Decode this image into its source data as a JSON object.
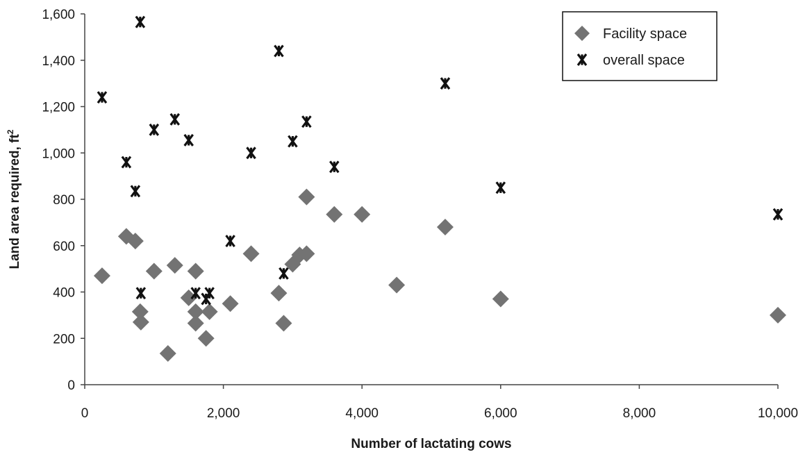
{
  "chart_data": {
    "type": "scatter",
    "xlabel": "Number of lactating cows",
    "ylabel": "Land area required, ft",
    "ylabel_sup": "2",
    "xlim": [
      0,
      10000
    ],
    "ylim": [
      0,
      1600
    ],
    "x_ticks": [
      0,
      2000,
      4000,
      6000,
      8000,
      10000
    ],
    "x_tick_labels": [
      "0",
      "2,000",
      "4,000",
      "6,000",
      "8,000",
      "10,000"
    ],
    "y_ticks": [
      0,
      200,
      400,
      600,
      800,
      1000,
      1200,
      1400,
      1600
    ],
    "y_tick_labels": [
      "0",
      "200",
      "400",
      "600",
      "800",
      "1,000",
      "1,200",
      "1,400",
      "1,600"
    ],
    "grid": false,
    "legend_position": "top-right",
    "series": [
      {
        "name": "Facility space",
        "marker": "diamond",
        "color": "#737373",
        "points": [
          [
            250,
            470
          ],
          [
            600,
            640
          ],
          [
            730,
            620
          ],
          [
            800,
            315
          ],
          [
            810,
            270
          ],
          [
            1000,
            490
          ],
          [
            1200,
            135
          ],
          [
            1300,
            515
          ],
          [
            1500,
            375
          ],
          [
            1600,
            490
          ],
          [
            1600,
            315
          ],
          [
            1600,
            265
          ],
          [
            1750,
            200
          ],
          [
            1800,
            315
          ],
          [
            2100,
            350
          ],
          [
            2400,
            565
          ],
          [
            2800,
            395
          ],
          [
            2870,
            265
          ],
          [
            3000,
            520
          ],
          [
            3100,
            560
          ],
          [
            3200,
            565
          ],
          [
            3200,
            810
          ],
          [
            3600,
            735
          ],
          [
            4000,
            735
          ],
          [
            4500,
            430
          ],
          [
            5200,
            680
          ],
          [
            6000,
            370
          ],
          [
            10000,
            300
          ]
        ]
      },
      {
        "name": "overall space",
        "marker": "asterisk",
        "color": "#111111",
        "points": [
          [
            250,
            1240
          ],
          [
            600,
            960
          ],
          [
            730,
            835
          ],
          [
            800,
            1565
          ],
          [
            810,
            395
          ],
          [
            1000,
            1100
          ],
          [
            1300,
            1145
          ],
          [
            1500,
            1055
          ],
          [
            1600,
            395
          ],
          [
            1750,
            370
          ],
          [
            1800,
            395
          ],
          [
            2100,
            620
          ],
          [
            2400,
            1000
          ],
          [
            2800,
            1440
          ],
          [
            2870,
            480
          ],
          [
            3000,
            1050
          ],
          [
            3200,
            1135
          ],
          [
            3600,
            940
          ],
          [
            5200,
            1300
          ],
          [
            6000,
            850
          ],
          [
            10000,
            735
          ]
        ]
      }
    ]
  }
}
